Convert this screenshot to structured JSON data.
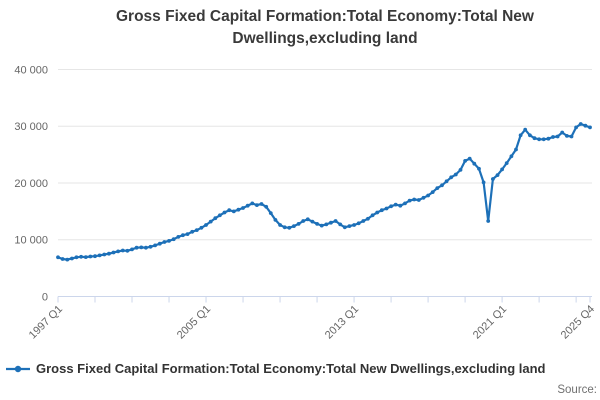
{
  "header": {
    "title_line1": "Gross Fixed Capital Formation:Total Economy:Total New",
    "title_line2": "Dwellings,excluding land"
  },
  "legend": {
    "label": "Gross Fixed Capital Formation:Total Economy:Total New Dwellings,excluding land"
  },
  "footer": {
    "source_label": "Source:"
  },
  "chart_data": {
    "type": "line",
    "title": "Gross Fixed Capital Formation:Total Economy:Total New Dwellings,excluding land",
    "legend_position": "bottom-left",
    "grid": "horizontal",
    "colors": {
      "series": "#1d70b8",
      "axis": "#ccd6eb",
      "gridline": "#e6e6e6",
      "tick_label": "#666666",
      "title_text": "#3a3a3a",
      "legend_text": "#333333",
      "source_text": "#707070",
      "background": "#ffffff"
    },
    "ylim": [
      0,
      40000
    ],
    "yticks": [
      {
        "value": 0,
        "label": "0"
      },
      {
        "value": 10000,
        "label": "10 000"
      },
      {
        "value": 20000,
        "label": "20 000"
      },
      {
        "value": 30000,
        "label": "30 000"
      },
      {
        "value": 40000,
        "label": "40 000"
      }
    ],
    "xtick_every_quarters": 8,
    "xtick_labels": [
      {
        "index": 0,
        "label": "1997 Q1"
      },
      {
        "index": 32,
        "label": "2005 Q1"
      },
      {
        "index": 64,
        "label": "2013 Q1"
      },
      {
        "index": 96,
        "label": "2021 Q1"
      },
      {
        "index": 115,
        "label": "2025 Q4"
      }
    ],
    "categories": [
      "1997 Q1",
      "1997 Q2",
      "1997 Q3",
      "1997 Q4",
      "1998 Q1",
      "1998 Q2",
      "1998 Q3",
      "1998 Q4",
      "1999 Q1",
      "1999 Q2",
      "1999 Q3",
      "1999 Q4",
      "2000 Q1",
      "2000 Q2",
      "2000 Q3",
      "2000 Q4",
      "2001 Q1",
      "2001 Q2",
      "2001 Q3",
      "2001 Q4",
      "2002 Q1",
      "2002 Q2",
      "2002 Q3",
      "2002 Q4",
      "2003 Q1",
      "2003 Q2",
      "2003 Q3",
      "2003 Q4",
      "2004 Q1",
      "2004 Q2",
      "2004 Q3",
      "2004 Q4",
      "2005 Q1",
      "2005 Q2",
      "2005 Q3",
      "2005 Q4",
      "2006 Q1",
      "2006 Q2",
      "2006 Q3",
      "2006 Q4",
      "2007 Q1",
      "2007 Q2",
      "2007 Q3",
      "2007 Q4",
      "2008 Q1",
      "2008 Q2",
      "2008 Q3",
      "2008 Q4",
      "2009 Q1",
      "2009 Q2",
      "2009 Q3",
      "2009 Q4",
      "2010 Q1",
      "2010 Q2",
      "2010 Q3",
      "2010 Q4",
      "2011 Q1",
      "2011 Q2",
      "2011 Q3",
      "2011 Q4",
      "2012 Q1",
      "2012 Q2",
      "2012 Q3",
      "2012 Q4",
      "2013 Q1",
      "2013 Q2",
      "2013 Q3",
      "2013 Q4",
      "2014 Q1",
      "2014 Q2",
      "2014 Q3",
      "2014 Q4",
      "2015 Q1",
      "2015 Q2",
      "2015 Q3",
      "2015 Q4",
      "2016 Q1",
      "2016 Q2",
      "2016 Q3",
      "2016 Q4",
      "2017 Q1",
      "2017 Q2",
      "2017 Q3",
      "2017 Q4",
      "2018 Q1",
      "2018 Q2",
      "2018 Q3",
      "2018 Q4",
      "2019 Q1",
      "2019 Q2",
      "2019 Q3",
      "2019 Q4",
      "2020 Q1",
      "2020 Q2",
      "2020 Q3",
      "2020 Q4",
      "2021 Q1",
      "2021 Q2",
      "2021 Q3",
      "2021 Q4",
      "2022 Q1",
      "2022 Q2",
      "2022 Q3",
      "2022 Q4",
      "2023 Q1",
      "2023 Q2",
      "2023 Q3",
      "2023 Q4",
      "2024 Q1",
      "2024 Q2",
      "2024 Q3",
      "2024 Q4",
      "2025 Q1",
      "2025 Q2",
      "2025 Q3",
      "2025 Q4"
    ],
    "series": [
      {
        "name": "Gross Fixed Capital Formation:Total Economy:Total New Dwellings,excluding land",
        "color": "#1d70b8",
        "values": [
          6900,
          6600,
          6500,
          6700,
          6900,
          7000,
          6950,
          7050,
          7100,
          7250,
          7400,
          7550,
          7750,
          7950,
          8100,
          8050,
          8300,
          8600,
          8650,
          8600,
          8750,
          9000,
          9300,
          9600,
          9800,
          10100,
          10500,
          10800,
          11000,
          11400,
          11700,
          12100,
          12600,
          13200,
          13800,
          14300,
          14800,
          15200,
          15000,
          15300,
          15600,
          16000,
          16400,
          16100,
          16300,
          15800,
          14700,
          13500,
          12600,
          12200,
          12100,
          12400,
          12800,
          13300,
          13600,
          13200,
          12800,
          12500,
          12700,
          13000,
          13300,
          12700,
          12200,
          12400,
          12600,
          12900,
          13300,
          13700,
          14300,
          14800,
          15200,
          15500,
          15900,
          16200,
          16000,
          16400,
          16900,
          17100,
          17000,
          17400,
          17800,
          18400,
          19100,
          19600,
          20300,
          21000,
          21500,
          22300,
          23900,
          24300,
          23400,
          22500,
          20100,
          13300,
          20700,
          21400,
          22400,
          23500,
          24700,
          25900,
          28400,
          29400,
          28400,
          27900,
          27700,
          27700,
          27800,
          28100,
          28200,
          28900,
          28300,
          28200,
          29800,
          30400,
          30100,
          29800
        ]
      }
    ]
  }
}
